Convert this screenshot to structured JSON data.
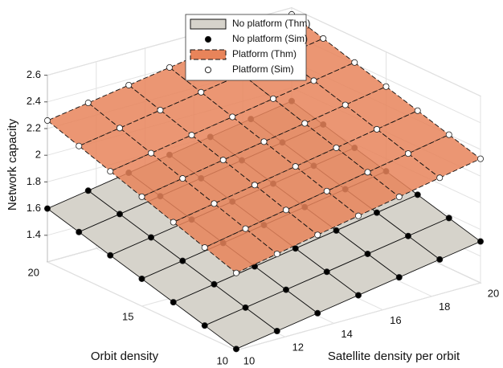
{
  "chart_data": {
    "type": "surface3d",
    "xlabel": "Satellite density per orbit",
    "ylabel": "Orbit density",
    "zlabel": "Network capacity",
    "xlim": [
      10,
      20
    ],
    "ylim": [
      10,
      20
    ],
    "zlim": [
      1.2,
      2.6
    ],
    "xticks": [
      10,
      12,
      14,
      16,
      18,
      20
    ],
    "yticks": [
      10,
      15,
      20
    ],
    "zticks": [
      1.4,
      1.6,
      1.8,
      2,
      2.2,
      2.4,
      2.6
    ],
    "grid": true,
    "legend_location": "north",
    "x": [
      10,
      11.67,
      13.33,
      15,
      16.67,
      18.33,
      20
    ],
    "y": [
      10,
      11.67,
      13.33,
      15,
      16.67,
      18.33,
      20
    ],
    "series": [
      {
        "name": "No platform (Thm)",
        "kind": "surface",
        "color": "#d6d3cb",
        "line_style": "solid",
        "z": [
          [
            1.21,
            1.26,
            1.31,
            1.36,
            1.41,
            1.46,
            1.51
          ],
          [
            1.275,
            1.325,
            1.375,
            1.425,
            1.475,
            1.525,
            1.575
          ],
          [
            1.34,
            1.39,
            1.44,
            1.49,
            1.54,
            1.59,
            1.64
          ],
          [
            1.405,
            1.455,
            1.505,
            1.555,
            1.605,
            1.655,
            1.705
          ],
          [
            1.47,
            1.52,
            1.57,
            1.62,
            1.67,
            1.72,
            1.77
          ],
          [
            1.535,
            1.585,
            1.635,
            1.685,
            1.735,
            1.785,
            1.835
          ],
          [
            1.6,
            1.65,
            1.7,
            1.75,
            1.8,
            1.85,
            1.9
          ]
        ]
      },
      {
        "name": "No platform (Sim)",
        "kind": "points",
        "color": "#000000",
        "z": [
          [
            1.21,
            1.26,
            1.31,
            1.36,
            1.41,
            1.46,
            1.51
          ],
          [
            1.275,
            1.325,
            1.375,
            1.425,
            1.475,
            1.525,
            1.575
          ],
          [
            1.34,
            1.39,
            1.44,
            1.49,
            1.54,
            1.59,
            1.64
          ],
          [
            1.405,
            1.455,
            1.505,
            1.555,
            1.605,
            1.655,
            1.705
          ],
          [
            1.47,
            1.52,
            1.57,
            1.62,
            1.67,
            1.72,
            1.77
          ],
          [
            1.535,
            1.585,
            1.635,
            1.685,
            1.735,
            1.785,
            1.835
          ],
          [
            1.6,
            1.65,
            1.7,
            1.75,
            1.8,
            1.85,
            1.9
          ]
        ]
      },
      {
        "name": "Platform (Thm)",
        "kind": "surface",
        "color": "#e8845a",
        "line_style": "dashed",
        "z": [
          [
            1.78,
            1.838,
            1.897,
            1.955,
            2.013,
            2.072,
            2.13
          ],
          [
            1.86,
            1.917,
            1.973,
            2.03,
            2.087,
            2.143,
            2.2
          ],
          [
            1.94,
            1.995,
            2.05,
            2.105,
            2.16,
            2.215,
            2.27
          ],
          [
            2.02,
            2.073,
            2.127,
            2.18,
            2.233,
            2.287,
            2.34
          ],
          [
            2.1,
            2.152,
            2.203,
            2.255,
            2.307,
            2.358,
            2.41
          ],
          [
            2.18,
            2.23,
            2.28,
            2.33,
            2.38,
            2.43,
            2.48
          ],
          [
            2.26,
            2.308,
            2.357,
            2.405,
            2.453,
            2.502,
            2.55
          ]
        ]
      },
      {
        "name": "Platform (Sim)",
        "kind": "points",
        "color": "#ffffff",
        "z": [
          [
            1.78,
            1.838,
            1.897,
            1.955,
            2.013,
            2.072,
            2.13
          ],
          [
            1.86,
            1.917,
            1.973,
            2.03,
            2.087,
            2.143,
            2.2
          ],
          [
            1.94,
            1.995,
            2.05,
            2.105,
            2.16,
            2.215,
            2.27
          ],
          [
            2.02,
            2.073,
            2.127,
            2.18,
            2.233,
            2.287,
            2.34
          ],
          [
            2.1,
            2.152,
            2.203,
            2.255,
            2.307,
            2.358,
            2.41
          ],
          [
            2.18,
            2.23,
            2.28,
            2.33,
            2.38,
            2.43,
            2.48
          ],
          [
            2.26,
            2.308,
            2.357,
            2.405,
            2.453,
            2.502,
            2.55
          ]
        ]
      }
    ]
  }
}
